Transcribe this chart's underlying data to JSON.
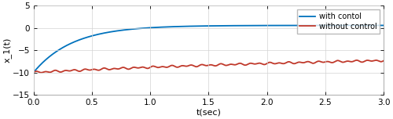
{
  "title": "",
  "xlabel": "t(sec)",
  "ylabel": "x_1(t)",
  "xlim": [
    0,
    3
  ],
  "ylim": [
    -15,
    5
  ],
  "yticks": [
    -15,
    -10,
    -5,
    0,
    5
  ],
  "xticks": [
    0,
    0.5,
    1,
    1.5,
    2,
    2.5,
    3
  ],
  "line1_color": "#0072BD",
  "line2_color": "#C0392B",
  "legend1": "with contol",
  "legend2": "without control",
  "line_width": 1.3,
  "a_blue": 3.0,
  "initial_blue": -10,
  "final_blue": 0.6,
  "a_red": 0.3,
  "initial_red": -10,
  "final_red": -5.5,
  "osc_amp1": 0.15,
  "osc_freq1": 12,
  "osc_amp2": 0.1,
  "osc_freq2": 7,
  "bg_color": "#FFFFFF",
  "grid_color": "#D3D3D3"
}
